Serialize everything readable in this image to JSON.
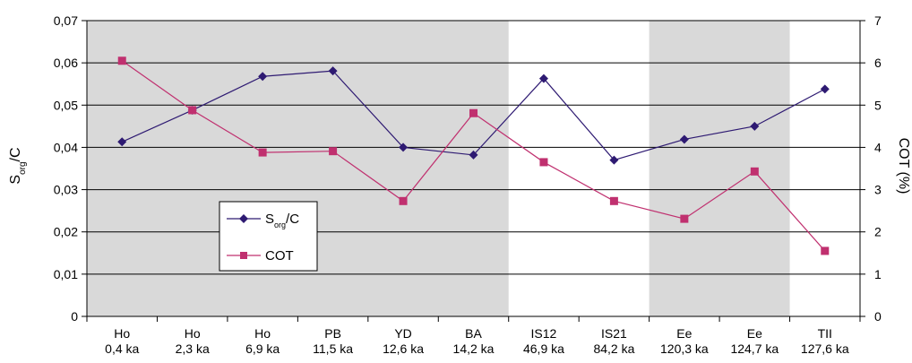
{
  "chart_data": {
    "type": "line",
    "categories": [
      [
        "Ho",
        "0,4 ka"
      ],
      [
        "Ho",
        "2,3 ka"
      ],
      [
        "Ho",
        "6,9 ka"
      ],
      [
        "PB",
        "11,5 ka"
      ],
      [
        "YD",
        "12,6 ka"
      ],
      [
        "BA",
        "14,2 ka"
      ],
      [
        "IS12",
        "46,9 ka"
      ],
      [
        "IS21",
        "84,2 ka"
      ],
      [
        "Ee",
        "120,3 ka"
      ],
      [
        "Ee",
        "124,7 ka"
      ],
      [
        "TII",
        "127,6 ka"
      ]
    ],
    "shaded_bands": [
      {
        "from_category": 0,
        "to_category": 5
      },
      {
        "from_category": 8,
        "to_category": 9
      }
    ],
    "colors": {
      "band": "#d9d9d9",
      "sorg": "#2e1a72",
      "cot": "#c0306f",
      "grid": "#000000"
    },
    "y_left": {
      "label_main": "S",
      "label_sub": "org",
      "label_tail": "/C",
      "min": 0,
      "max": 0.07,
      "ticks": [
        0,
        0.01,
        0.02,
        0.03,
        0.04,
        0.05,
        0.06,
        0.07
      ],
      "tick_labels": [
        "0",
        "0,01",
        "0,02",
        "0,03",
        "0,04",
        "0,05",
        "0,06",
        "0,07"
      ]
    },
    "y_right": {
      "label": "COT (%)",
      "min": 0,
      "max": 7,
      "ticks": [
        0,
        1,
        2,
        3,
        4,
        5,
        6,
        7
      ],
      "tick_labels": [
        "0",
        "1",
        "2",
        "3",
        "4",
        "5",
        "6",
        "7"
      ]
    },
    "series": [
      {
        "key": "sorg",
        "legend_main": "S",
        "legend_sub": "org",
        "legend_tail": "/C",
        "axis": "left",
        "marker": "diamond",
        "values": [
          0.0413,
          0.0488,
          0.0568,
          0.0581,
          0.04,
          0.0382,
          0.0563,
          0.037,
          0.0419,
          0.045,
          0.0538
        ]
      },
      {
        "key": "cot",
        "legend_main": "COT",
        "axis": "right",
        "marker": "square",
        "values": [
          6.05,
          4.88,
          3.88,
          3.91,
          2.73,
          4.81,
          3.65,
          2.73,
          2.31,
          3.43,
          1.55
        ]
      }
    ],
    "legend_position": "lower-left-inside",
    "grid": "horizontal"
  }
}
